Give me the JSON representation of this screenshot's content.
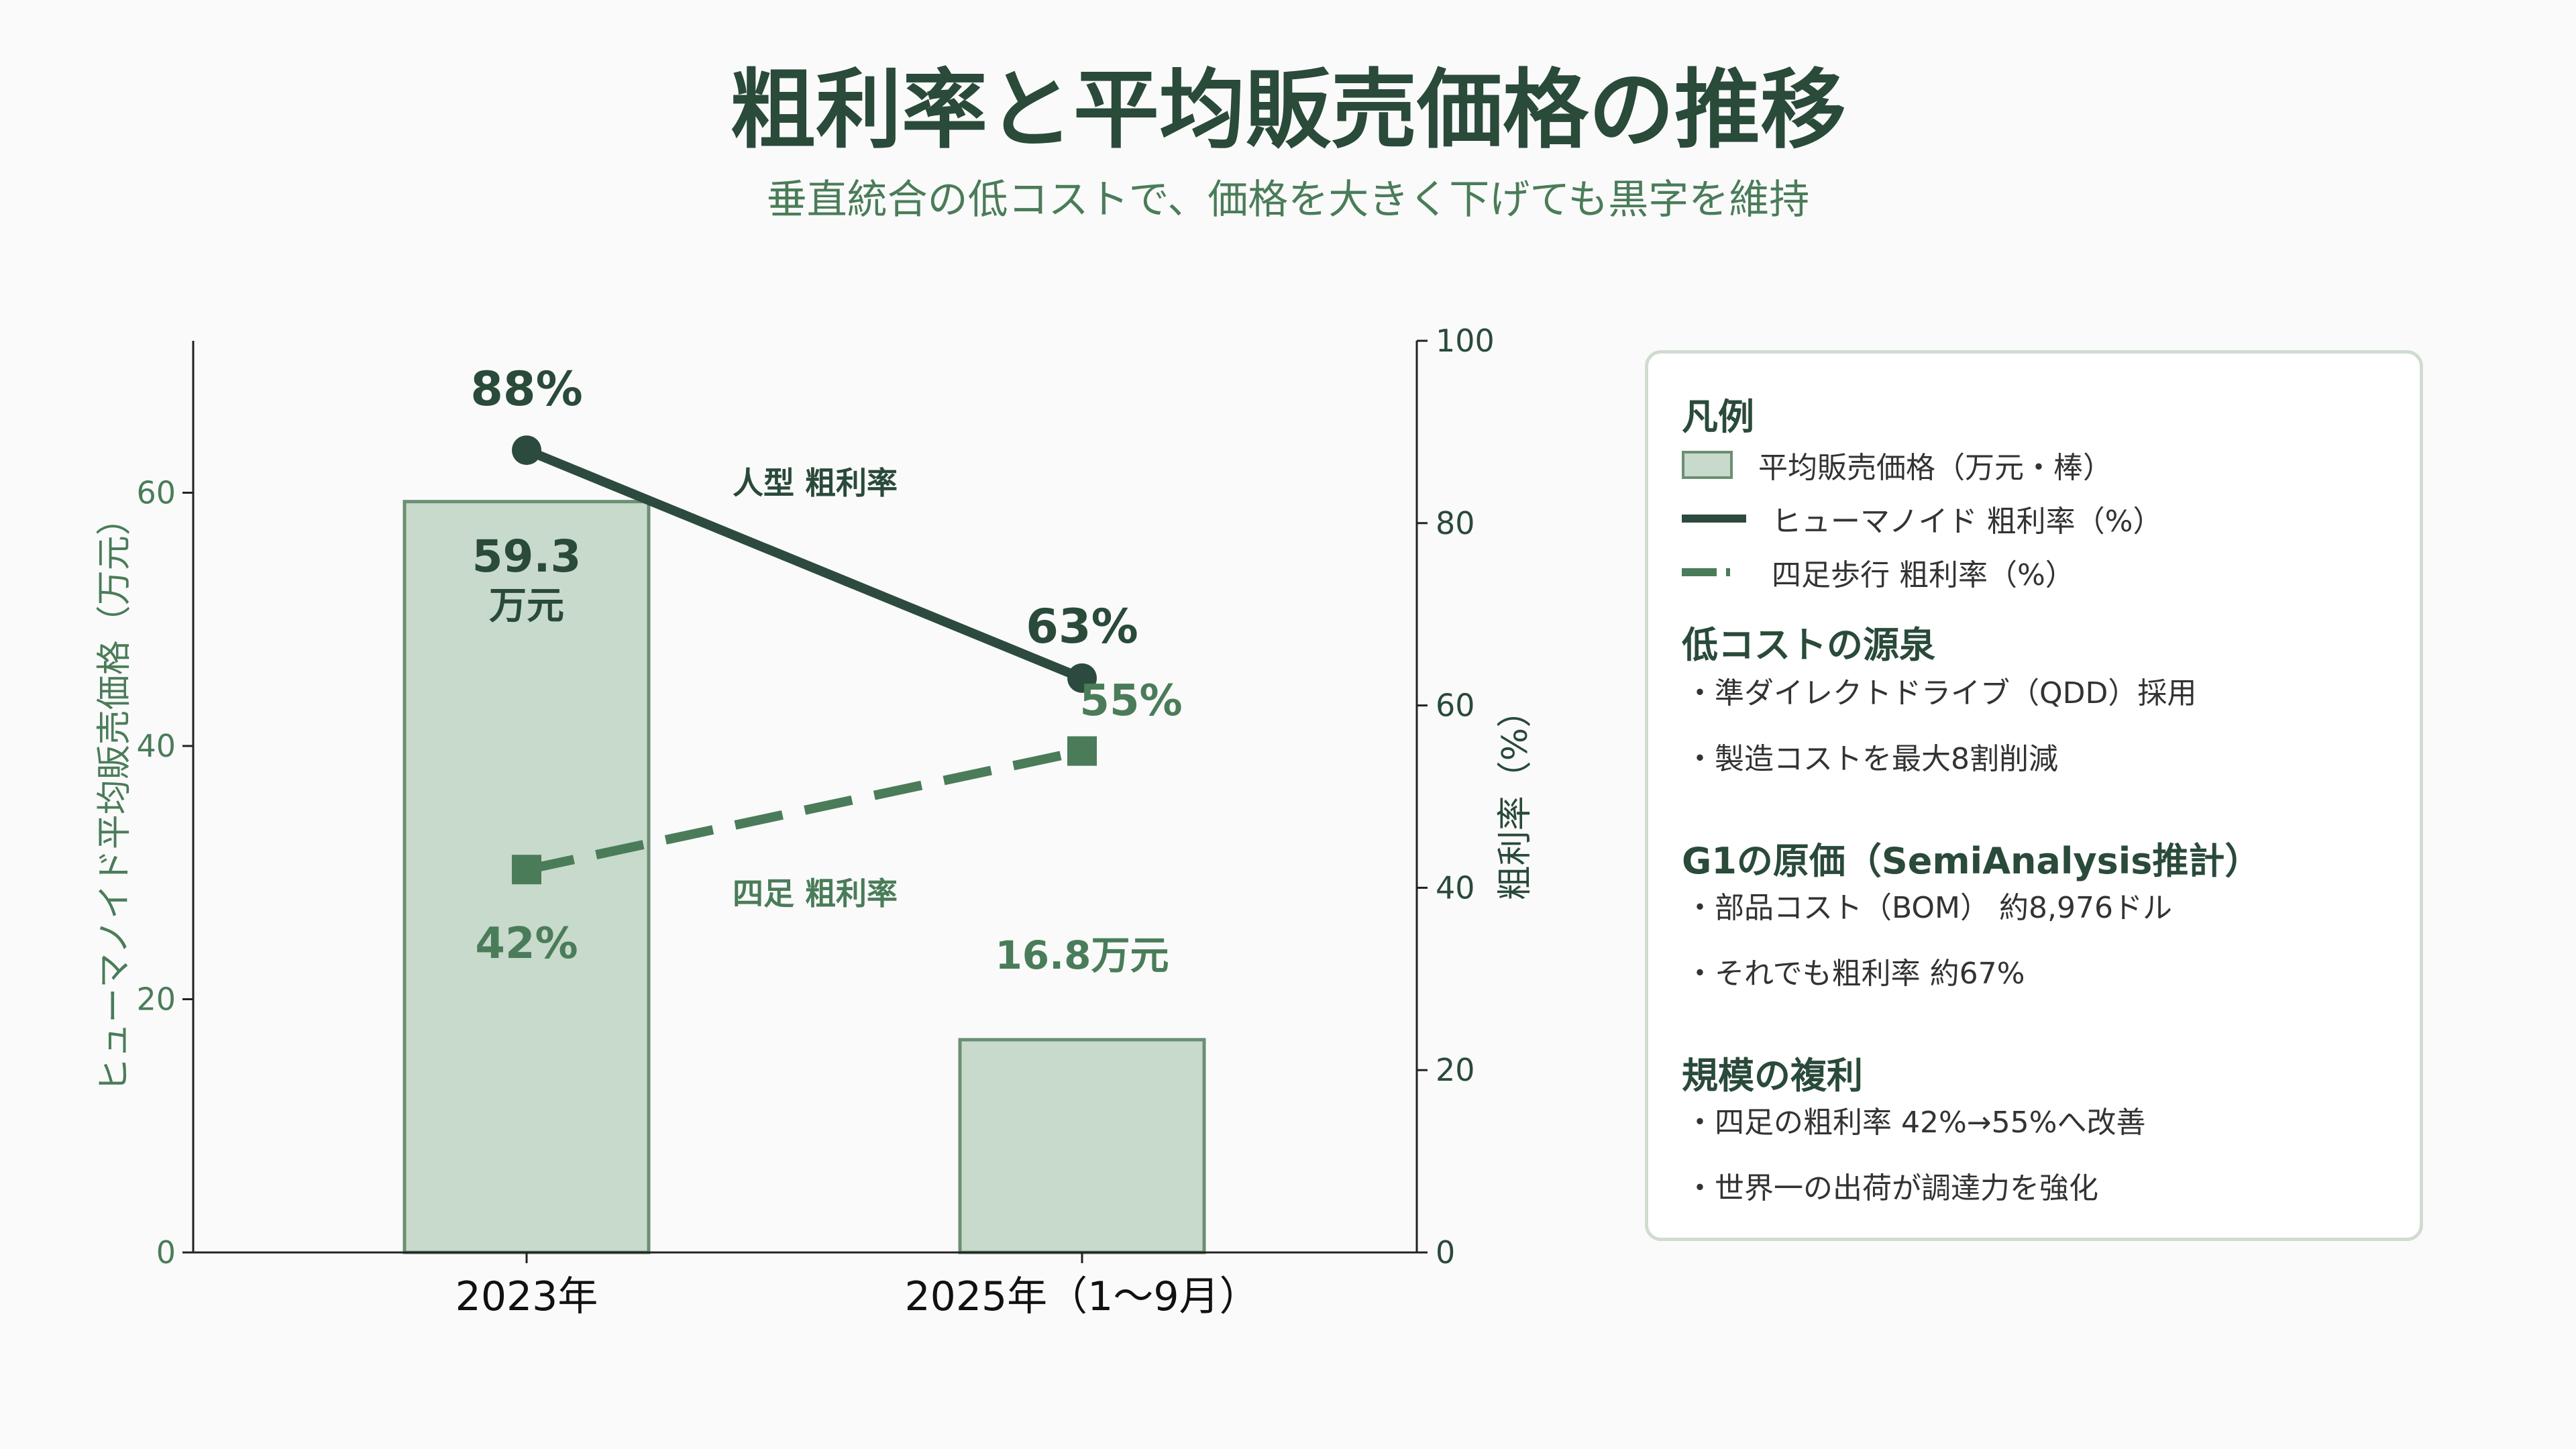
{
  "title": "粗利率と平均販売価格の推移",
  "subtitle": "垂直統合の低コストで、価格を大きく下げても黒字を維持",
  "chart_data": {
    "type": "bar",
    "categories": [
      "2023年",
      "2025年（1〜9月）"
    ],
    "bar_series": {
      "name": "平均販売価格（万元・棒）",
      "values": [
        59.3,
        16.8
      ],
      "data_labels": [
        "59.3\n万元",
        "16.8万元"
      ]
    },
    "line_series": [
      {
        "name": "ヒューマノイド 粗利率（%）",
        "values": [
          88,
          63
        ],
        "data_labels": [
          "88%",
          "63%"
        ],
        "annotation": "人型 粗利率"
      },
      {
        "name": "四足歩行 粗利率（%）",
        "values": [
          42,
          55
        ],
        "data_labels": [
          "42%",
          "55%"
        ],
        "annotation": "四足 粗利率"
      }
    ],
    "ylabel_left": "ヒューマノイド平均販売価格（万元）",
    "ylabel_right": "粗利率（%）",
    "ylim_left": [
      0,
      72
    ],
    "ylim_right": [
      0,
      100
    ],
    "yticks_left": [
      0,
      20,
      40,
      60
    ],
    "yticks_right": [
      0,
      20,
      40,
      60,
      80,
      100
    ],
    "grid": false,
    "legend_placement": "right",
    "colors": {
      "bar_fill": "#c8dacb",
      "bar_edge": "#6b8f72",
      "humanoid_line": "#2d4a3e",
      "quadruped_line": "#4a7c59",
      "axis": "#222222",
      "left_axis_text": "#4a7c59",
      "right_axis_text": "#2a4a3a"
    }
  },
  "panel": {
    "legend_heading": "凡例",
    "legend_items": [
      {
        "label": "平均販売価格（万元・棒）"
      },
      {
        "label": "ヒューマノイド 粗利率（%）"
      },
      {
        "label": "四足歩行 粗利率（%）"
      }
    ],
    "sections": [
      {
        "heading": "低コストの源泉",
        "items": [
          "・準ダイレクトドライブ（QDD）採用",
          "・製造コストを最大8割削減"
        ]
      },
      {
        "heading": "G1の原価（SemiAnalysis推計）",
        "items": [
          "・部品コスト（BOM） 約8,976ドル",
          "・それでも粗利率 約67%"
        ]
      },
      {
        "heading": "規模の複利",
        "items": [
          "・四足の粗利率 42%→55%へ改善",
          "・世界一の出荷が調達力を強化"
        ]
      }
    ]
  }
}
